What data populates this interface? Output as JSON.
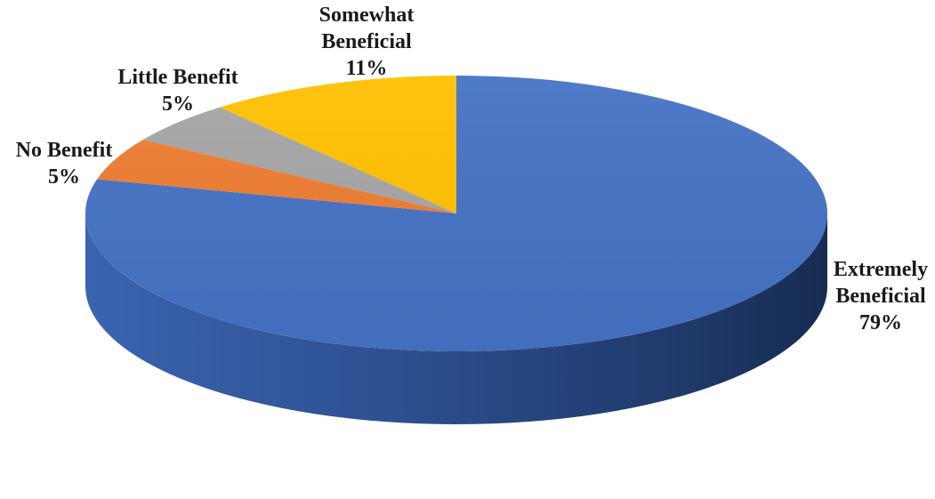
{
  "chart_data": {
    "type": "pie",
    "title": "",
    "categories": [
      "Extremely Beneficial",
      "No Benefit",
      "Little Benefit",
      "Somewhat Beneficial"
    ],
    "values": [
      79,
      5,
      5,
      11
    ],
    "value_labels": [
      "79%",
      "5%",
      "5%",
      "11%"
    ],
    "label_lines": [
      [
        "Extremely",
        "Beneficial",
        "79%"
      ],
      [
        "No Benefit",
        "5%"
      ],
      [
        "Little Benefit",
        "5%"
      ],
      [
        "Somewhat",
        "Beneficial",
        "11%"
      ]
    ],
    "colors": [
      "#4472C4",
      "#ED7D31",
      "#A5A5A5",
      "#FFC000"
    ],
    "style": "3d-pie",
    "legend": "none",
    "data_labels": "outside"
  }
}
